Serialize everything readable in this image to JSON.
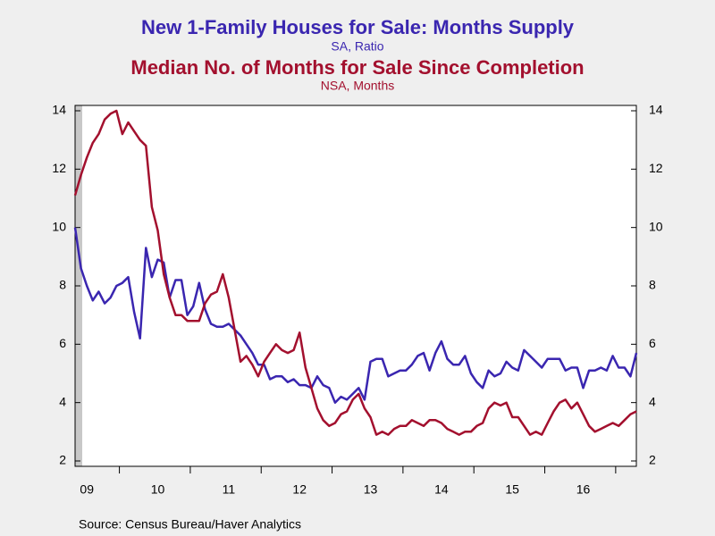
{
  "chart_data": {
    "type": "line",
    "title": "New 1-Family Houses for Sale: Months Supply",
    "subtitle": "SA, Ratio",
    "title2": "Median No. of Months for Sale Since Completion",
    "subtitle2": "NSA, Months",
    "source": "Source:  Census Bureau/Haver Analytics",
    "categories": [
      null,
      null,
      "09",
      null,
      null,
      null,
      null,
      null,
      null,
      null,
      null,
      null,
      null,
      null,
      "10",
      null,
      null,
      null,
      null,
      null,
      null,
      null,
      null,
      null,
      null,
      null,
      "11",
      null,
      null,
      null,
      null,
      null,
      null,
      null,
      null,
      null,
      null,
      null,
      "12",
      null,
      null,
      null,
      null,
      null,
      null,
      null,
      null,
      null,
      null,
      null,
      "13",
      null,
      null,
      null,
      null,
      null,
      null,
      null,
      null,
      null,
      null,
      null,
      "14",
      null,
      null,
      null,
      null,
      null,
      null,
      null,
      null,
      null,
      null,
      null,
      "15",
      null,
      null,
      null,
      null,
      null,
      null,
      null,
      null,
      null,
      null,
      null,
      "16",
      null,
      null,
      null,
      null,
      null,
      null,
      null,
      null,
      null
    ],
    "series": [
      {
        "name": "New 1-Family Houses for Sale: Months Supply",
        "color": "#3a26b0",
        "values": [
          10.0,
          8.6,
          8.0,
          7.5,
          7.8,
          7.4,
          7.6,
          8.0,
          8.1,
          8.3,
          7.1,
          6.2,
          9.3,
          8.3,
          8.9,
          8.8,
          7.6,
          8.2,
          8.2,
          7.0,
          7.3,
          8.1,
          7.2,
          6.7,
          6.6,
          6.6,
          6.7,
          6.5,
          6.3,
          6.0,
          5.7,
          5.3,
          5.3,
          4.8,
          4.9,
          4.9,
          4.7,
          4.8,
          4.6,
          4.6,
          4.5,
          4.9,
          4.6,
          4.5,
          4.0,
          4.2,
          4.1,
          4.3,
          4.5,
          4.1,
          5.4,
          5.5,
          5.5,
          4.9,
          5.0,
          5.1,
          5.1,
          5.3,
          5.6,
          5.7,
          5.1,
          5.7,
          6.1,
          5.5,
          5.3,
          5.3,
          5.6,
          5.0,
          4.7,
          4.5,
          5.1,
          4.9,
          5.0,
          5.4,
          5.2,
          5.1,
          5.8,
          5.6,
          5.4,
          5.2,
          5.5,
          5.5,
          5.5,
          5.1,
          5.2,
          5.2,
          4.5,
          5.1,
          5.1,
          5.2,
          5.1,
          5.6,
          5.2,
          5.2,
          4.9,
          5.7
        ]
      },
      {
        "name": "Median No. of Months for Sale Since Completion",
        "color": "#a3102e",
        "axis": "y2",
        "values": [
          11.1,
          11.8,
          12.4,
          12.9,
          13.2,
          13.7,
          13.9,
          14.0,
          13.2,
          13.6,
          13.3,
          13.0,
          12.8,
          10.7,
          9.9,
          8.4,
          7.6,
          7.0,
          7.0,
          6.8,
          6.8,
          6.8,
          7.4,
          7.7,
          7.8,
          8.4,
          7.6,
          6.5,
          5.4,
          5.6,
          5.3,
          4.9,
          5.4,
          5.7,
          6.0,
          5.8,
          5.7,
          5.8,
          6.4,
          5.2,
          4.5,
          3.8,
          3.4,
          3.2,
          3.3,
          3.6,
          3.7,
          4.1,
          4.3,
          3.8,
          3.5,
          2.9,
          3.0,
          2.9,
          3.1,
          3.2,
          3.2,
          3.4,
          3.3,
          3.2,
          3.4,
          3.4,
          3.3,
          3.1,
          3.0,
          2.9,
          3.0,
          3.0,
          3.2,
          3.3,
          3.8,
          4.0,
          3.9,
          4.0,
          3.5,
          3.5,
          3.2,
          2.9,
          3.0,
          2.9,
          3.3,
          3.7,
          4.0,
          4.1,
          3.8,
          4.0,
          3.6,
          3.2,
          3.0,
          3.1,
          3.2,
          3.3,
          3.2,
          3.4,
          3.6,
          3.7
        ]
      }
    ],
    "ylim": [
      2,
      14
    ],
    "yticks": [
      2,
      4,
      6,
      8,
      10,
      12,
      14
    ],
    "y2lim": [
      2,
      14
    ],
    "y2ticks": [
      2,
      4,
      6,
      8,
      10,
      12,
      14
    ],
    "grid": false
  }
}
